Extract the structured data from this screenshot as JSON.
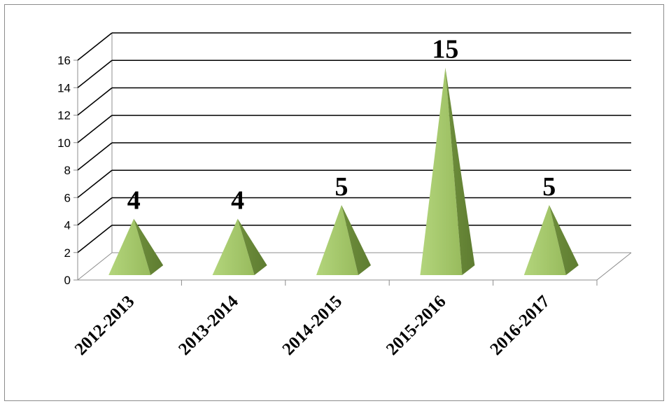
{
  "chart_data": {
    "type": "bar",
    "mark_shape": "pyramid-3d",
    "categories": [
      "2012-2013",
      "2013-2014",
      "2014-2015",
      "2015-2016",
      "2016-2017"
    ],
    "values": [
      4,
      4,
      5,
      15,
      5
    ],
    "data_labels": [
      "4",
      "4",
      "5",
      "15",
      "5"
    ],
    "y_ticks": [
      "0",
      "2",
      "4",
      "6",
      "8",
      "10",
      "12",
      "14",
      "16"
    ],
    "ylim": [
      0,
      16
    ],
    "grid": true,
    "legend": "none",
    "colors": {
      "front": "#a3c46a",
      "side": "#6f8f3c",
      "gridline": "#000000",
      "wall": "#8c8c8c"
    }
  }
}
